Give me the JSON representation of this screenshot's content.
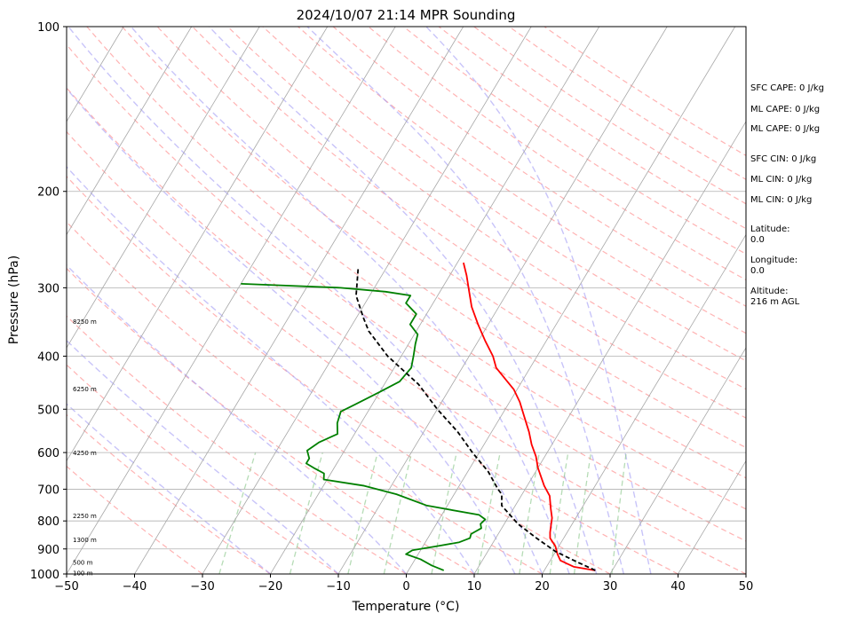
{
  "chart_data": {
    "type": "line",
    "title": "2024/10/07 21:14 MPR Sounding",
    "xlabel": "Temperature (°C)",
    "ylabel": "Pressure (hPa)",
    "xlim": [
      -50,
      50
    ],
    "ylim": [
      1000,
      100
    ],
    "y_scale": "log",
    "x_ticks": [
      -50,
      -40,
      -30,
      -20,
      -10,
      0,
      10,
      20,
      30,
      40,
      50
    ],
    "y_ticks": [
      1000,
      900,
      800,
      700,
      600,
      500,
      400,
      300,
      200,
      100
    ],
    "grid": true,
    "series": [
      {
        "name": "",
        "color": "#ff0000",
        "points": [
          [
            27.5,
            985
          ],
          [
            24,
            970
          ],
          [
            21.5,
            945
          ],
          [
            20.5,
            920
          ],
          [
            19.5,
            890
          ],
          [
            18,
            860
          ],
          [
            17.5,
            840
          ],
          [
            17,
            815
          ],
          [
            16.5,
            790
          ],
          [
            15.5,
            760
          ],
          [
            14.2,
            720
          ],
          [
            12.5,
            690
          ],
          [
            10,
            640
          ],
          [
            8.7,
            610
          ],
          [
            7,
            580
          ],
          [
            5.5,
            550
          ],
          [
            3.4,
            515
          ],
          [
            1.5,
            485
          ],
          [
            -0.5,
            460
          ],
          [
            -2.7,
            440
          ],
          [
            -5,
            420
          ],
          [
            -6.5,
            400
          ],
          [
            -9,
            375
          ],
          [
            -11.5,
            350
          ],
          [
            -14,
            325
          ],
          [
            -15.7,
            305
          ],
          [
            -17.5,
            285
          ],
          [
            -19.1,
            270
          ]
        ]
      },
      {
        "name": "",
        "color": "#008000",
        "points": [
          [
            5.2,
            985
          ],
          [
            3,
            965
          ],
          [
            0.8,
            940
          ],
          [
            -1.8,
            920
          ],
          [
            -1.2,
            905
          ],
          [
            2,
            890
          ],
          [
            5,
            875
          ],
          [
            6.2,
            860
          ],
          [
            6,
            845
          ],
          [
            7,
            825
          ],
          [
            6.5,
            810
          ],
          [
            6.8,
            795
          ],
          [
            5.5,
            780
          ],
          [
            -3,
            750
          ],
          [
            -8.5,
            715
          ],
          [
            -14,
            690
          ],
          [
            -20.5,
            672
          ],
          [
            -21,
            655
          ],
          [
            -23,
            640
          ],
          [
            -24.5,
            628
          ],
          [
            -24.5,
            615
          ],
          [
            -25.5,
            595
          ],
          [
            -24.5,
            575
          ],
          [
            -22.5,
            555
          ],
          [
            -23.5,
            530
          ],
          [
            -24,
            505
          ],
          [
            -22.5,
            490
          ],
          [
            -20,
            465
          ],
          [
            -18,
            445
          ],
          [
            -17.5,
            420
          ],
          [
            -18.2,
            400
          ],
          [
            -19,
            380
          ],
          [
            -19.5,
            365
          ],
          [
            -21.5,
            350
          ],
          [
            -21.5,
            335
          ],
          [
            -24,
            320
          ],
          [
            -24,
            310
          ],
          [
            -28,
            305
          ],
          [
            -35,
            300
          ],
          [
            -50,
            295
          ]
        ]
      },
      {
        "name": "",
        "color": "#000000",
        "dashed": true,
        "points": [
          [
            27.5,
            985
          ],
          [
            24,
            950
          ],
          [
            20,
            910
          ],
          [
            16,
            860
          ],
          [
            12,
            810
          ],
          [
            8,
            750
          ],
          [
            7,
            715
          ],
          [
            6,
            700
          ],
          [
            3,
            650
          ],
          [
            -1,
            600
          ],
          [
            -5,
            550
          ],
          [
            -10,
            500
          ],
          [
            -15,
            450
          ],
          [
            -22,
            400
          ],
          [
            -27,
            360
          ],
          [
            -29,
            340
          ],
          [
            -32,
            310
          ],
          [
            -34.2,
            275
          ]
        ]
      }
    ],
    "side_stats": [
      "SFC CAPE: 0 J/kg",
      "ML CAPE: 0 J/kg",
      "ML CAPE: 0 J/kg",
      "SFC CIN: 0 J/kg",
      "ML CIN: 0 J/kg",
      "ML CIN: 0 J/kg",
      "Latitude:",
      "0.0",
      "Longitude:",
      "0.0",
      "Altitude:",
      "216 m AGL"
    ],
    "height_labels": [
      {
        "text": "8250 m",
        "p": 345
      },
      {
        "text": "6250 m",
        "p": 458
      },
      {
        "text": "4250 m",
        "p": 600
      },
      {
        "text": "2250 m",
        "p": 782
      },
      {
        "text": "1300 m",
        "p": 865
      },
      {
        "text": "500 m",
        "p": 950
      },
      {
        "text": "100 m",
        "p": 995
      }
    ]
  }
}
